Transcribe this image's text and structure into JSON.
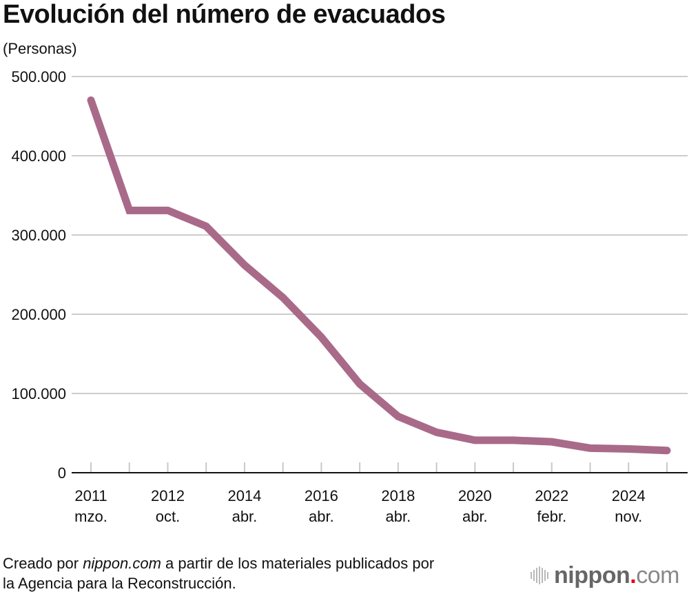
{
  "chart_data": {
    "type": "line",
    "title": "Evolución del número de evacuados",
    "ylabel": "(Personas)",
    "xlabel": "",
    "ylim": [
      0,
      500000
    ],
    "yticks": [
      0,
      100000,
      200000,
      300000,
      400000,
      500000
    ],
    "ytick_labels": [
      "0",
      "100.000",
      "200.000",
      "300.000",
      "400.000",
      "500.000"
    ],
    "x_labels": [
      {
        "index": 0,
        "year": "2011",
        "month": "mzo."
      },
      {
        "index": 2,
        "year": "2012",
        "month": "oct."
      },
      {
        "index": 4,
        "year": "2014",
        "month": "abr."
      },
      {
        "index": 6,
        "year": "2016",
        "month": "abr."
      },
      {
        "index": 8,
        "year": "2018",
        "month": "abr."
      },
      {
        "index": 10,
        "year": "2020",
        "month": "abr."
      },
      {
        "index": 12,
        "year": "2022",
        "month": "febr."
      },
      {
        "index": 14,
        "year": "2024",
        "month": "nov."
      }
    ],
    "grid": true,
    "series": [
      {
        "name": "Evacuados",
        "color": "#a96a89",
        "values": [
          470000,
          331000,
          331000,
          311000,
          262000,
          221000,
          171000,
          112000,
          71000,
          51000,
          41000,
          41000,
          39000,
          31000,
          30000,
          28000
        ]
      }
    ]
  },
  "footer": {
    "source_prefix": "Creado por ",
    "source_site": "nippon.com",
    "source_line1_rest": " a partir de los materiales publicados por",
    "source_line2": "la Agencia para la Reconstrucción."
  },
  "logo": {
    "name": "nippon",
    "dot": ".",
    "suffix": "com"
  }
}
